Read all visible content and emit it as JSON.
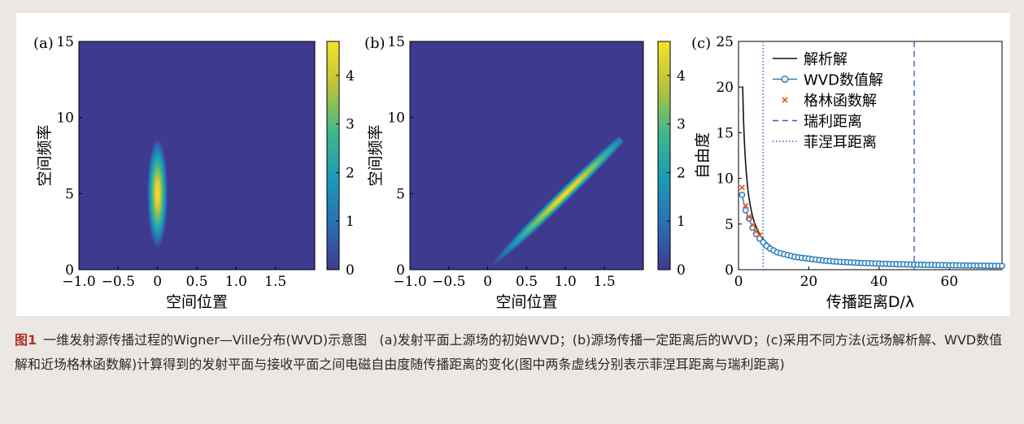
{
  "figure": {
    "caption": {
      "label": "图1",
      "title": "一维发射源传播过程的Wigner—Ville分布(WVD)示意图",
      "text": "(a)发射平面上源场的初始WVD；(b)源场传播一定距离后的WVD；(c)采用不同方法(远场解析解、WVD数值解和近场格林函数解)计算得到的发射平面与接收平面之间电磁自由度随传播距离的变化(图中两条虚线分别表示菲涅耳距离与瑞利距离)"
    },
    "colors": {
      "heat_low": "#3e3a8f",
      "analytic_line": "#111111",
      "wvd_line": "#2b7fbf",
      "green_marker": "#e0602a",
      "rayleigh_line": "#3b5fb5",
      "fresnel_line": "#3b5fb5"
    }
  },
  "chart_data": [
    {
      "type": "heatmap",
      "panel_label": "(a)",
      "xlabel": "空间位置",
      "ylabel": "空间频率",
      "xlim": [
        -1.0,
        2.0
      ],
      "ylim": [
        0,
        15
      ],
      "xticks": [
        "−1.0",
        "−0.5",
        "0",
        "0.5",
        "1.0",
        "1.5"
      ],
      "xtick_values": [
        -1.0,
        -0.5,
        0,
        0.5,
        1.0,
        1.5
      ],
      "yticks": [
        "0",
        "5",
        "10",
        "15"
      ],
      "ytick_values": [
        0,
        5,
        10,
        15
      ],
      "colorbar": {
        "range": [
          0,
          4.7
        ],
        "ticks": [
          "0",
          "1",
          "2",
          "3",
          "4"
        ],
        "tick_values": [
          0,
          1,
          2,
          3,
          4
        ]
      },
      "blob": {
        "center_x": 0,
        "center_y": 5,
        "sigma_x": 0.05,
        "sigma_y": 1.1,
        "slope": 0,
        "peak": 4.5
      }
    },
    {
      "type": "heatmap",
      "panel_label": "(b)",
      "xlabel": "空间位置",
      "ylabel": "空间频率",
      "xlim": [
        -1.0,
        2.0
      ],
      "ylim": [
        0,
        15
      ],
      "xticks": [
        "−1.0",
        "−0.5",
        "0",
        "0.5",
        "1.0",
        "1.5"
      ],
      "xtick_values": [
        -1.0,
        -0.5,
        0,
        0.5,
        1.0,
        1.5
      ],
      "yticks": [
        "0",
        "5",
        "10",
        "15"
      ],
      "ytick_values": [
        0,
        5,
        10,
        15
      ],
      "colorbar": {
        "range": [
          0,
          4.7
        ],
        "ticks": [
          "0",
          "1",
          "2",
          "3",
          "4"
        ],
        "tick_values": [
          0,
          1,
          2,
          3,
          4
        ]
      },
      "blob": {
        "center_x": 1.0,
        "center_y": 5,
        "sigma_x": 0.05,
        "sigma_y": 1.1,
        "slope": 5,
        "peak": 4.5
      }
    },
    {
      "type": "line",
      "panel_label": "(c)",
      "xlabel": "传播距离D/λ",
      "ylabel": "自由度",
      "xlim": [
        0,
        75
      ],
      "ylim": [
        0,
        25
      ],
      "xticks": [
        "0",
        "20",
        "40",
        "60"
      ],
      "xtick_values": [
        0,
        20,
        40,
        60
      ],
      "yticks": [
        "0",
        "5",
        "10",
        "15",
        "20",
        "25"
      ],
      "ytick_values": [
        0,
        5,
        10,
        15,
        20,
        25
      ],
      "legend_position": "top-center",
      "series": [
        {
          "name": "解析解",
          "style": "solid",
          "k": 23.5
        },
        {
          "name": "WVD数值解",
          "style": "line-circle",
          "x": [
            1,
            2,
            3,
            4,
            5,
            6,
            7,
            8,
            9,
            10,
            11,
            12,
            13,
            14,
            15,
            16,
            17,
            18,
            19,
            20,
            21,
            22,
            23,
            24,
            25,
            26,
            27,
            28,
            29,
            30,
            31,
            32,
            33,
            34,
            35,
            36,
            37,
            38,
            39,
            40,
            41,
            42,
            43,
            44,
            45,
            46,
            47,
            48,
            49,
            50,
            51,
            52,
            53,
            54,
            55,
            56,
            57,
            58,
            59,
            60,
            61,
            62,
            63,
            64,
            65,
            66,
            67,
            68,
            69,
            70,
            71,
            72,
            73,
            74,
            75
          ],
          "y": [
            8.2,
            6.5,
            5.6,
            4.6,
            3.9,
            3.4,
            3.0,
            2.6,
            2.3,
            2.1,
            1.9,
            1.8,
            1.7,
            1.6,
            1.5,
            1.4,
            1.35,
            1.3,
            1.25,
            1.2,
            1.15,
            1.1,
            1.05,
            1.0,
            0.97,
            0.94,
            0.91,
            0.88,
            0.85,
            0.83,
            0.81,
            0.79,
            0.77,
            0.75,
            0.73,
            0.72,
            0.7,
            0.69,
            0.67,
            0.66,
            0.65,
            0.64,
            0.62,
            0.61,
            0.6,
            0.59,
            0.58,
            0.57,
            0.56,
            0.55,
            0.55,
            0.54,
            0.53,
            0.52,
            0.52,
            0.51,
            0.5,
            0.5,
            0.49,
            0.48,
            0.48,
            0.47,
            0.47,
            0.46,
            0.46,
            0.45,
            0.45,
            0.44,
            0.44,
            0.43,
            0.43,
            0.42,
            0.42,
            0.42,
            0.41
          ]
        },
        {
          "name": "格林函数解",
          "style": "marker-x",
          "x": [
            1,
            2,
            3,
            4,
            5,
            6
          ],
          "y": [
            9.0,
            7.0,
            5.8,
            4.9,
            4.2,
            3.8
          ]
        },
        {
          "name": "瑞利距离",
          "style": "dashed",
          "x": 50
        },
        {
          "name": "菲涅耳距离",
          "style": "dotted",
          "x": 7
        }
      ]
    }
  ]
}
